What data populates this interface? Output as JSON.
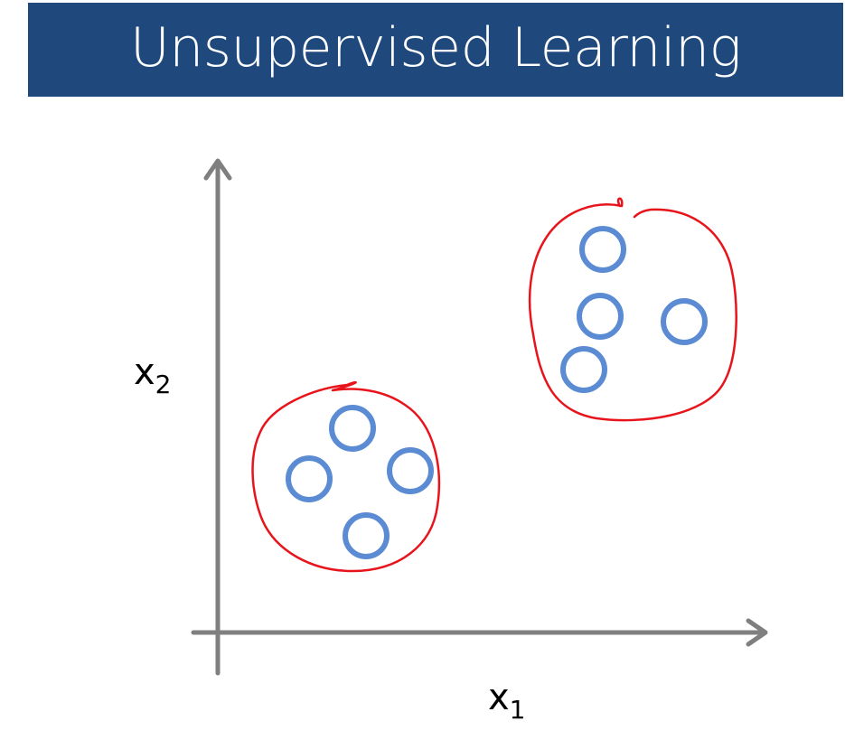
{
  "title": "Unsupervised Learning",
  "axes": {
    "x": {
      "var": "x",
      "sub": "1"
    },
    "y": {
      "var": "x",
      "sub": "2"
    }
  },
  "colors": {
    "header_bg": "#1f497d",
    "axis": "#7f7f7f",
    "points": "#5b8bd3",
    "cluster_outline": "#e8141b"
  },
  "clusters": [
    {
      "name": "cluster-1",
      "point_count": 4
    },
    {
      "name": "cluster-2",
      "point_count": 4
    }
  ]
}
